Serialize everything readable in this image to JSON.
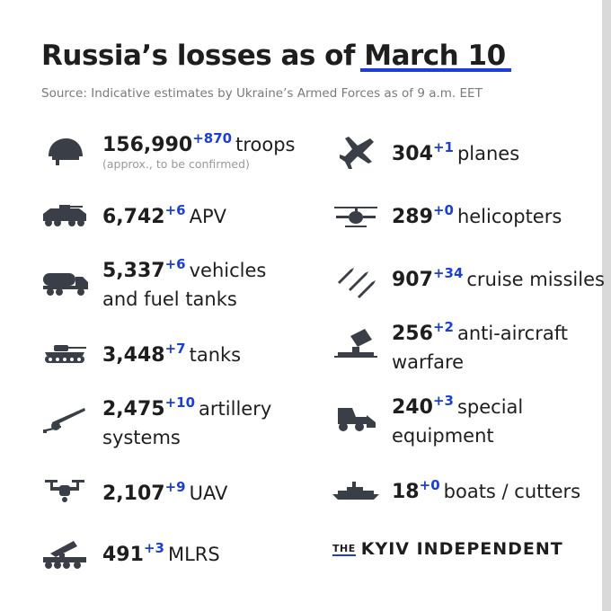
{
  "title": {
    "prefix": "Russia’s losses as of ",
    "date": "March 10"
  },
  "source": "Source: Indicative estimates by Ukraine’s Armed Forces as of 9 a.m. EET",
  "items": {
    "troops": {
      "value": "156,990",
      "delta": "+870",
      "label": "troops",
      "note": "(approx., to be confirmed)",
      "icon": "helmet-icon"
    },
    "apv": {
      "value": "6,742",
      "delta": "+6",
      "label": "APV",
      "icon": "apv-icon"
    },
    "vehicles": {
      "value": "5,337",
      "delta": "+6",
      "label1": "vehicles",
      "label2": "and fuel tanks",
      "icon": "fuel-truck-icon"
    },
    "tanks": {
      "value": "3,448",
      "delta": "+7",
      "label": "tanks",
      "icon": "tank-icon"
    },
    "artillery": {
      "value": "2,475",
      "delta": "+10",
      "label1": "artillery",
      "label2": "systems",
      "icon": "artillery-icon"
    },
    "uav": {
      "value": "2,107",
      "delta": "+9",
      "label": "UAV",
      "icon": "drone-icon"
    },
    "mlrs": {
      "value": "491",
      "delta": "+3",
      "label": "MLRS",
      "icon": "mlrs-icon"
    },
    "planes": {
      "value": "304",
      "delta": "+1",
      "label": "planes",
      "icon": "jet-icon"
    },
    "helicopters": {
      "value": "289",
      "delta": "+0",
      "label": "helicopters",
      "icon": "helicopter-icon"
    },
    "missiles": {
      "value": "907",
      "delta": "+34",
      "label": "cruise missiles",
      "icon": "missiles-icon"
    },
    "antiair": {
      "value": "256",
      "delta": "+2",
      "label1": "anti-aircraft",
      "label2": "warfare",
      "icon": "anti-aircraft-icon"
    },
    "special": {
      "value": "240",
      "delta": "+3",
      "label1": "special",
      "label2": "equipment",
      "icon": "loader-icon"
    },
    "boats": {
      "value": "18",
      "delta": "+0",
      "label": "boats / cutters",
      "icon": "ship-icon"
    }
  },
  "brand": {
    "the": "THE",
    "name": "KYIV INDEPENDENT"
  },
  "colors": {
    "accent": "#1a3fd8",
    "text": "#1e1e1e",
    "muted": "#7a7a7a",
    "icon": "#3a3f47"
  }
}
